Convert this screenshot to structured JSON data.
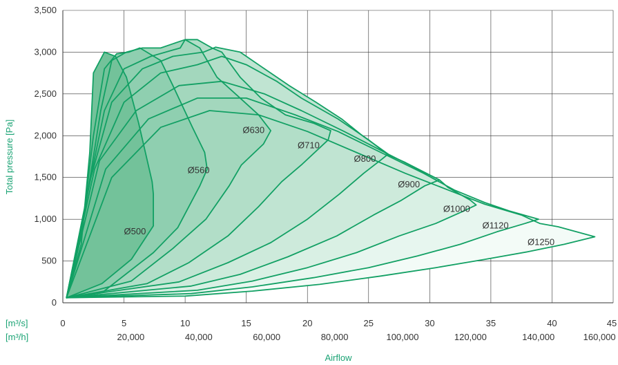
{
  "chart_data": {
    "type": "area",
    "xlabel": "Airflow",
    "ylabel": "Total pressure [Pa]",
    "x_unit_primary": "[m³/s]",
    "x_unit_secondary": "[m³/h]",
    "xlim": [
      0,
      45
    ],
    "ylim": [
      0,
      3500
    ],
    "grid": true,
    "x_ticks_primary": [
      "0",
      "5",
      "10",
      "15",
      "20",
      "25",
      "30",
      "35",
      "40",
      "45"
    ],
    "x_ticks_primary_values": [
      0,
      5,
      10,
      15,
      20,
      25,
      30,
      35,
      40,
      45
    ],
    "x_ticks_secondary": [
      "20,000",
      "40,000",
      "60,000",
      "80,000",
      "100,000",
      "120,000",
      "140,000",
      "160,000"
    ],
    "x_ticks_secondary_values": [
      20000,
      40000,
      60000,
      80000,
      100000,
      120000,
      140000,
      160000
    ],
    "y_ticks": [
      "0",
      "500",
      "1,000",
      "1,500",
      "2,000",
      "2,500",
      "3,000",
      "3,500"
    ],
    "y_ticks_values": [
      0,
      500,
      1000,
      1500,
      2000,
      2500,
      3000,
      3500
    ],
    "colors": {
      "fill_light": "#e3f4ec",
      "fill_mid": "#bfe3d0",
      "fill_dark": "#73c29a",
      "line": "#12a064",
      "grid": "#333333",
      "accent": "#1aa374"
    },
    "series": [
      {
        "name": "Ø500",
        "label_pos": [
          5,
          820
        ],
        "values": [
          [
            0.3,
            60
          ],
          [
            1.5,
            700
          ],
          [
            2.2,
            1800
          ],
          [
            2.5,
            2750
          ],
          [
            3.4,
            3000
          ],
          [
            4.3,
            2950
          ],
          [
            5.2,
            2700
          ],
          [
            6.2,
            2150
          ],
          [
            7.3,
            1450
          ],
          [
            7.4,
            1300
          ],
          [
            7.4,
            920
          ],
          [
            5.6,
            520
          ],
          [
            3.2,
            230
          ],
          [
            0.3,
            60
          ]
        ]
      },
      {
        "name": "Ø560",
        "label_pos": [
          10.2,
          1550
        ],
        "values": [
          [
            0.3,
            60
          ],
          [
            1.6,
            900
          ],
          [
            2.5,
            2000
          ],
          [
            3.4,
            2800
          ],
          [
            4.4,
            2980
          ],
          [
            5.4,
            3000
          ],
          [
            6.3,
            3050
          ],
          [
            8.0,
            2900
          ],
          [
            9.0,
            2600
          ],
          [
            10.6,
            2100
          ],
          [
            11.6,
            1800
          ],
          [
            11.8,
            1600
          ],
          [
            11.2,
            1400
          ],
          [
            9.4,
            900
          ],
          [
            7.4,
            600
          ],
          [
            3.2,
            120
          ],
          [
            0.3,
            60
          ]
        ]
      },
      {
        "name": "Ø630",
        "label_pos": [
          14.7,
          2030
        ],
        "values": [
          [
            0.3,
            60
          ],
          [
            1.9,
            1200
          ],
          [
            3.1,
            2300
          ],
          [
            4.0,
            2900
          ],
          [
            5.2,
            3000
          ],
          [
            6.5,
            3050
          ],
          [
            8.0,
            3050
          ],
          [
            9.0,
            3100
          ],
          [
            10.0,
            3150
          ],
          [
            11.2,
            3050
          ],
          [
            12.6,
            2700
          ],
          [
            14.5,
            2450
          ],
          [
            16.0,
            2250
          ],
          [
            17.0,
            2060
          ],
          [
            16.4,
            1900
          ],
          [
            14.6,
            1650
          ],
          [
            13.6,
            1400
          ],
          [
            11.7,
            1000
          ],
          [
            9.0,
            650
          ],
          [
            5.6,
            260
          ],
          [
            0.3,
            60
          ]
        ]
      },
      {
        "name": "Ø710",
        "label_pos": [
          19.2,
          1850
        ],
        "values": [
          [
            0.3,
            60
          ],
          [
            2.0,
            1300
          ],
          [
            3.4,
            2300
          ],
          [
            5.0,
            2800
          ],
          [
            7.2,
            2950
          ],
          [
            9.6,
            3050
          ],
          [
            10.0,
            3150
          ],
          [
            11.0,
            3150
          ],
          [
            12.2,
            3050
          ],
          [
            13.0,
            3000
          ],
          [
            14.5,
            2700
          ],
          [
            16.2,
            2450
          ],
          [
            18.2,
            2250
          ],
          [
            20.5,
            2150
          ],
          [
            21.9,
            2060
          ],
          [
            21.7,
            1950
          ],
          [
            19.5,
            1650
          ],
          [
            17.9,
            1450
          ],
          [
            16.0,
            1150
          ],
          [
            13.5,
            800
          ],
          [
            10.3,
            480
          ],
          [
            6.9,
            230
          ],
          [
            0.3,
            60
          ]
        ]
      },
      {
        "name": "Ø800",
        "label_pos": [
          23.8,
          1690
        ],
        "values": [
          [
            0.3,
            60
          ],
          [
            2.3,
            1500
          ],
          [
            4.0,
            2400
          ],
          [
            6.5,
            2800
          ],
          [
            9.0,
            2950
          ],
          [
            11.5,
            3000
          ],
          [
            12.5,
            3060
          ],
          [
            14.5,
            3000
          ],
          [
            16.5,
            2800
          ],
          [
            18.5,
            2600
          ],
          [
            20.7,
            2400
          ],
          [
            22.8,
            2200
          ],
          [
            24.5,
            2000
          ],
          [
            26.6,
            1780
          ],
          [
            26.1,
            1720
          ],
          [
            24.6,
            1550
          ],
          [
            22.6,
            1300
          ],
          [
            20.0,
            1000
          ],
          [
            17.0,
            720
          ],
          [
            13.5,
            480
          ],
          [
            9.5,
            250
          ],
          [
            0.3,
            60
          ]
        ]
      },
      {
        "name": "Ø900",
        "label_pos": [
          27.4,
          1380
        ],
        "values": [
          [
            0.3,
            60
          ],
          [
            2.6,
            1600
          ],
          [
            5.0,
            2400
          ],
          [
            8.0,
            2750
          ],
          [
            11.0,
            2850
          ],
          [
            13.0,
            2950
          ],
          [
            15.0,
            2850
          ],
          [
            17.5,
            2650
          ],
          [
            19.5,
            2450
          ],
          [
            22.5,
            2200
          ],
          [
            25.0,
            1950
          ],
          [
            26.6,
            1770
          ],
          [
            28.0,
            1680
          ],
          [
            30.8,
            1470
          ],
          [
            29.6,
            1400
          ],
          [
            27.6,
            1220
          ],
          [
            25.4,
            1050
          ],
          [
            22.4,
            800
          ],
          [
            18.4,
            550
          ],
          [
            14.5,
            340
          ],
          [
            10.5,
            200
          ],
          [
            0.3,
            60
          ]
        ]
      },
      {
        "name": "Ø1000",
        "label_pos": [
          31.1,
          1090
        ],
        "values": [
          [
            0.3,
            60
          ],
          [
            3.0,
            1700
          ],
          [
            6.0,
            2300
          ],
          [
            9.5,
            2600
          ],
          [
            13.0,
            2650
          ],
          [
            16.5,
            2500
          ],
          [
            19.5,
            2300
          ],
          [
            23.0,
            2050
          ],
          [
            26.6,
            1780
          ],
          [
            29.0,
            1600
          ],
          [
            30.8,
            1470
          ],
          [
            31.5,
            1380
          ],
          [
            33.3,
            1230
          ],
          [
            33.8,
            1170
          ],
          [
            32.8,
            1100
          ],
          [
            30.5,
            950
          ],
          [
            27.5,
            800
          ],
          [
            24.0,
            600
          ],
          [
            20.0,
            420
          ],
          [
            15.5,
            260
          ],
          [
            11.0,
            150
          ],
          [
            0.3,
            60
          ]
        ]
      },
      {
        "name": "Ø1120",
        "label_pos": [
          34.3,
          890
        ],
        "values": [
          [
            0.3,
            60
          ],
          [
            3.5,
            1600
          ],
          [
            7.0,
            2200
          ],
          [
            11.0,
            2450
          ],
          [
            15.0,
            2450
          ],
          [
            19.0,
            2250
          ],
          [
            22.5,
            2050
          ],
          [
            26.0,
            1800
          ],
          [
            29.5,
            1550
          ],
          [
            32.0,
            1350
          ],
          [
            34.5,
            1200
          ],
          [
            36.5,
            1100
          ],
          [
            38.9,
            1000
          ],
          [
            37.8,
            950
          ],
          [
            35.5,
            850
          ],
          [
            32.5,
            700
          ],
          [
            29.0,
            560
          ],
          [
            25.0,
            420
          ],
          [
            20.5,
            300
          ],
          [
            15.5,
            190
          ],
          [
            10.5,
            110
          ],
          [
            0.3,
            60
          ]
        ]
      },
      {
        "name": "Ø1250",
        "label_pos": [
          38.0,
          690
        ],
        "values": [
          [
            0.3,
            60
          ],
          [
            4.0,
            1500
          ],
          [
            8.0,
            2100
          ],
          [
            12.0,
            2300
          ],
          [
            16.0,
            2250
          ],
          [
            20.0,
            2050
          ],
          [
            24.0,
            1800
          ],
          [
            28.0,
            1550
          ],
          [
            31.5,
            1350
          ],
          [
            34.5,
            1180
          ],
          [
            37.5,
            1050
          ],
          [
            39.0,
            950
          ],
          [
            40.5,
            910
          ],
          [
            43.5,
            790
          ],
          [
            41.0,
            700
          ],
          [
            38.0,
            610
          ],
          [
            34.5,
            520
          ],
          [
            30.5,
            420
          ],
          [
            26.0,
            320
          ],
          [
            21.0,
            220
          ],
          [
            15.5,
            140
          ],
          [
            10.0,
            80
          ],
          [
            0.3,
            60
          ]
        ]
      }
    ]
  }
}
